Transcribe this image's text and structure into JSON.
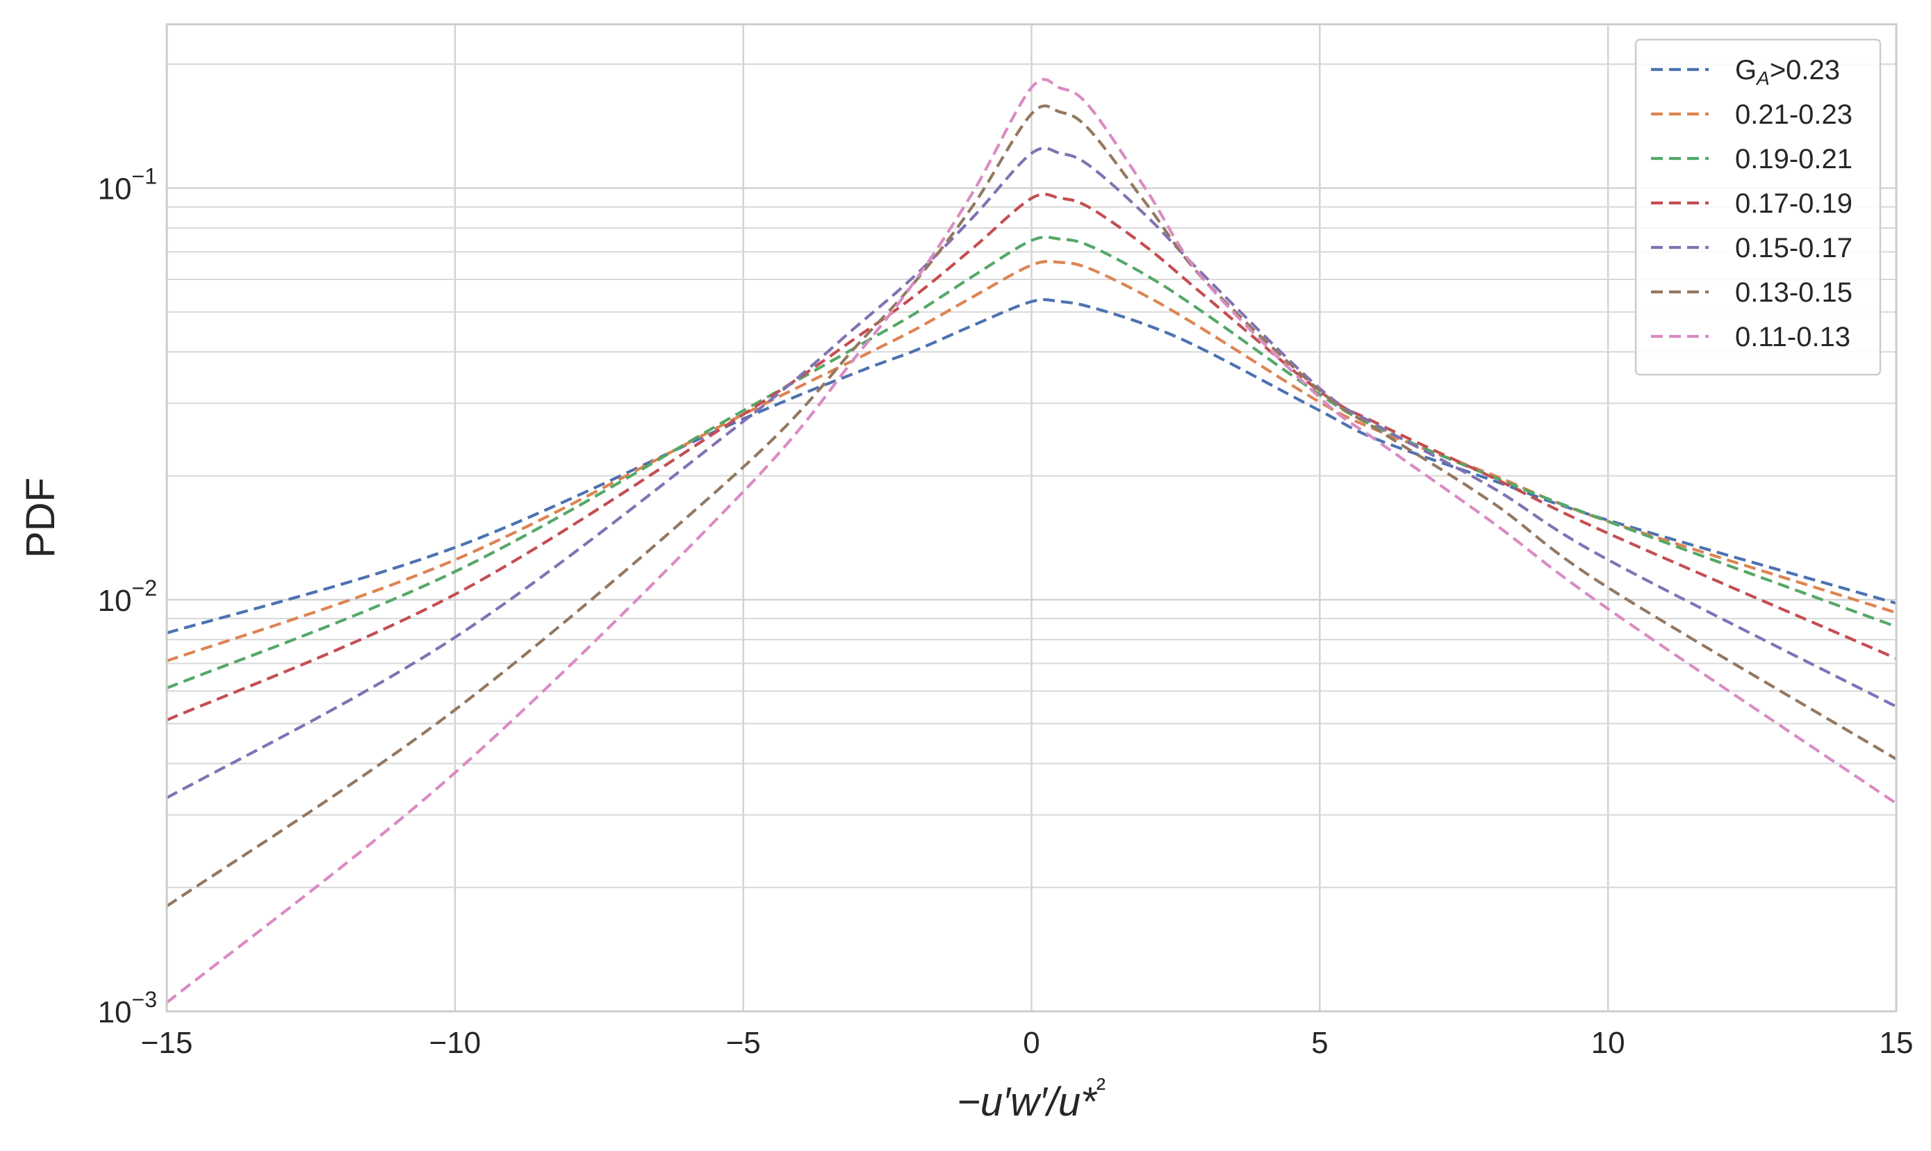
{
  "chart_data": {
    "type": "line",
    "xlabel": "−u′w′/u*²",
    "ylabel": "PDF",
    "xlim": [
      -15,
      15
    ],
    "ylim": [
      0.001,
      0.25
    ],
    "yscale": "log",
    "grid": true,
    "legend_position": "top-right",
    "x_ticks": [
      "−15",
      "−10",
      "−5",
      "0",
      "5",
      "10",
      "15"
    ],
    "y_ticks": [
      {
        "value": 0.001,
        "base": "10",
        "exp": "−3"
      },
      {
        "value": 0.01,
        "base": "10",
        "exp": "−2"
      },
      {
        "value": 0.1,
        "base": "10",
        "exp": "−1"
      }
    ],
    "x": [
      -15,
      -10,
      -5,
      -3,
      -2,
      -1,
      0,
      0.5,
      1,
      2,
      3,
      5,
      6,
      8,
      10,
      15
    ],
    "series": [
      {
        "name": "G_A>0.23",
        "label_main": "G",
        "label_sub": "A",
        "label_rest": ">0.23",
        "color": "#4c72b0",
        "values": [
          0.0083,
          0.0134,
          0.0275,
          0.0358,
          0.0404,
          0.0465,
          0.053,
          0.053,
          0.0515,
          0.0465,
          0.0404,
          0.0288,
          0.0245,
          0.0195,
          0.0156,
          0.0098
        ]
      },
      {
        "name": "0.21-0.23",
        "color": "#dd8452",
        "values": [
          0.0071,
          0.0125,
          0.0282,
          0.0387,
          0.0455,
          0.0546,
          0.065,
          0.066,
          0.0638,
          0.0546,
          0.0452,
          0.0302,
          0.0258,
          0.0201,
          0.0155,
          0.0093
        ]
      },
      {
        "name": "0.19-0.21",
        "color": "#55a868",
        "values": [
          0.0061,
          0.0117,
          0.0288,
          0.0414,
          0.0498,
          0.0613,
          0.0746,
          0.0752,
          0.0725,
          0.0613,
          0.0497,
          0.0315,
          0.0262,
          0.0199,
          0.0155,
          0.0086
        ]
      },
      {
        "name": "0.17-0.19",
        "color": "#c44e52",
        "values": [
          0.0051,
          0.0103,
          0.0282,
          0.0437,
          0.0551,
          0.0718,
          0.0945,
          0.0945,
          0.0898,
          0.0718,
          0.0548,
          0.0321,
          0.0268,
          0.0198,
          0.0145,
          0.0072
        ]
      },
      {
        "name": "0.15-0.17",
        "color": "#8172b3",
        "values": [
          0.0033,
          0.0081,
          0.0271,
          0.0466,
          0.0617,
          0.0854,
          0.1215,
          0.1215,
          0.1135,
          0.0854,
          0.0612,
          0.0326,
          0.0265,
          0.0187,
          0.0125,
          0.0055
        ]
      },
      {
        "name": "0.13-0.15",
        "color": "#937860",
        "values": [
          0.0018,
          0.0054,
          0.021,
          0.0419,
          0.0597,
          0.0913,
          0.1515,
          0.153,
          0.1388,
          0.0913,
          0.0597,
          0.0322,
          0.0259,
          0.0172,
          0.0107,
          0.0041
        ]
      },
      {
        "name": "0.11-0.13",
        "color": "#da8bc3",
        "values": [
          0.00105,
          0.0038,
          0.0183,
          0.0397,
          0.0601,
          0.0986,
          0.1755,
          0.175,
          0.158,
          0.0986,
          0.0597,
          0.031,
          0.0243,
          0.0154,
          0.0095,
          0.0032
        ]
      }
    ]
  }
}
